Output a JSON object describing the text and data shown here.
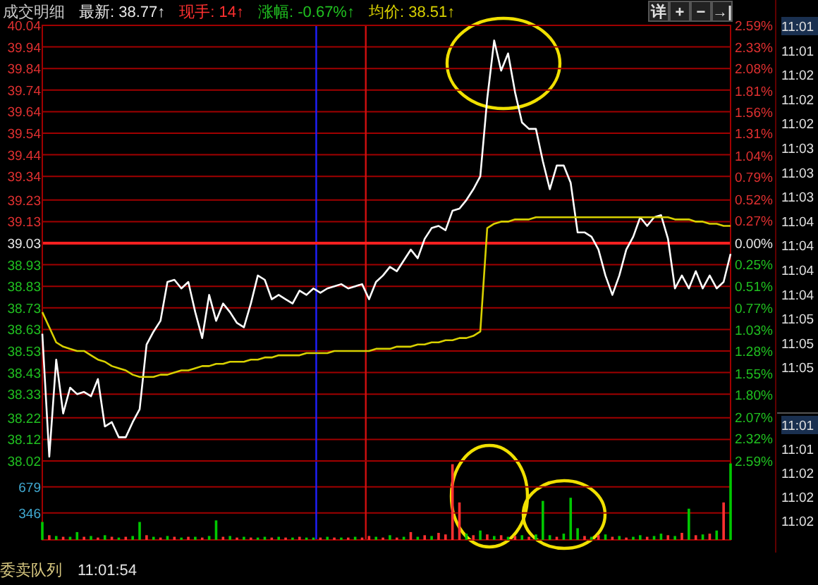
{
  "chart_data": [
    {
      "type": "line",
      "categories": [
        null,
        null,
        null,
        null,
        null,
        null,
        null,
        null,
        null,
        null,
        null,
        null,
        null,
        null,
        null,
        null,
        null,
        null,
        null,
        null,
        null,
        null,
        null,
        null,
        null,
        null,
        null,
        null,
        null,
        null,
        null,
        null,
        null,
        null,
        null,
        null,
        null,
        null,
        null,
        null,
        null,
        null,
        null,
        null,
        null,
        null,
        null,
        null,
        null,
        null,
        null,
        null,
        null,
        null,
        null,
        null,
        null,
        null,
        null,
        null,
        null,
        null,
        null,
        null,
        null,
        null,
        null,
        null,
        null,
        null,
        null,
        null,
        null,
        null,
        null,
        null,
        null,
        null,
        null,
        null,
        null,
        null,
        null,
        null,
        null,
        null,
        null,
        null,
        null,
        null,
        null,
        null,
        null,
        null,
        null,
        null,
        null,
        null,
        null,
        null
      ],
      "series": [
        {
          "color": "#ffffff",
          "values": [
            38.61,
            38.04,
            38.49,
            38.24,
            38.36,
            38.33,
            38.34,
            38.32,
            38.4,
            38.18,
            38.2,
            38.13,
            38.13,
            38.2,
            38.26,
            38.56,
            38.62,
            38.67,
            38.85,
            38.86,
            38.82,
            38.85,
            38.71,
            38.59,
            38.79,
            38.67,
            38.75,
            38.71,
            38.66,
            38.64,
            38.75,
            38.88,
            38.86,
            38.77,
            38.79,
            38.77,
            38.75,
            38.81,
            38.79,
            38.82,
            38.8,
            38.82,
            38.83,
            38.84,
            38.82,
            38.83,
            38.84,
            38.77,
            38.85,
            38.88,
            38.92,
            38.9,
            38.95,
            39.0,
            38.96,
            39.05,
            39.1,
            39.11,
            39.09,
            39.18,
            39.19,
            39.23,
            39.28,
            39.34,
            39.7,
            39.97,
            39.83,
            39.91,
            39.73,
            39.59,
            39.56,
            39.56,
            39.41,
            39.28,
            39.39,
            39.39,
            39.31,
            39.08,
            39.08,
            39.06,
            39.0,
            38.88,
            38.79,
            38.88,
            39.0,
            39.06,
            39.15,
            39.11,
            39.15,
            39.16,
            39.05,
            38.82,
            38.88,
            38.82,
            38.9,
            38.82,
            38.88,
            38.82,
            38.85,
            38.98
          ]
        },
        {
          "color": "#d8d000",
          "values": [
            38.71,
            38.64,
            38.57,
            38.55,
            38.54,
            38.53,
            38.53,
            38.51,
            38.49,
            38.48,
            38.46,
            38.45,
            38.44,
            38.42,
            38.41,
            38.41,
            38.41,
            38.42,
            38.42,
            38.43,
            38.44,
            38.44,
            38.45,
            38.46,
            38.46,
            38.47,
            38.47,
            38.48,
            38.48,
            38.48,
            38.49,
            38.49,
            38.5,
            38.5,
            38.51,
            38.51,
            38.51,
            38.51,
            38.52,
            38.52,
            38.52,
            38.52,
            38.53,
            38.53,
            38.53,
            38.53,
            38.53,
            38.53,
            38.54,
            38.54,
            38.54,
            38.55,
            38.55,
            38.55,
            38.56,
            38.56,
            38.57,
            38.57,
            38.58,
            38.58,
            38.59,
            38.59,
            38.6,
            38.62,
            39.1,
            39.12,
            39.13,
            39.13,
            39.14,
            39.14,
            39.14,
            39.15,
            39.15,
            39.15,
            39.15,
            39.15,
            39.15,
            39.15,
            39.15,
            39.15,
            39.15,
            39.15,
            39.15,
            39.15,
            39.15,
            39.15,
            39.15,
            39.15,
            39.15,
            39.15,
            39.15,
            39.14,
            39.14,
            39.14,
            39.13,
            39.13,
            39.12,
            39.12,
            39.11,
            39.11
          ]
        }
      ],
      "ylim": [
        38.02,
        40.04
      ],
      "yticks": [
        40.04,
        39.94,
        39.84,
        39.74,
        39.64,
        39.54,
        39.44,
        39.34,
        39.23,
        39.13,
        39.03,
        38.93,
        38.83,
        38.73,
        38.63,
        38.53,
        38.43,
        38.33,
        38.22,
        38.12,
        38.02
      ],
      "y2lim": [
        -2.59,
        2.59
      ],
      "y2ticks": [
        {
          "value": 2.59,
          "label": "2.59%"
        },
        {
          "value": 2.33,
          "label": "2.33%"
        },
        {
          "value": 2.08,
          "label": "2.08%"
        },
        {
          "value": 1.81,
          "label": "1.81%"
        },
        {
          "value": 1.56,
          "label": "1.56%"
        },
        {
          "value": 1.31,
          "label": "1.31%"
        },
        {
          "value": 1.04,
          "label": "1.04%"
        },
        {
          "value": 0.79,
          "label": "0.79%"
        },
        {
          "value": 0.52,
          "label": "0.52%"
        },
        {
          "value": 0.27,
          "label": "0.27%"
        },
        {
          "value": 0,
          "label": "0.00%"
        },
        {
          "value": -0.25,
          "label": "0.25%"
        },
        {
          "value": -0.51,
          "label": "0.51%"
        },
        {
          "value": -0.77,
          "label": "0.77%"
        },
        {
          "value": -1.03,
          "label": "1.03%"
        },
        {
          "value": -1.28,
          "label": "1.28%"
        },
        {
          "value": -1.55,
          "label": "1.55%"
        },
        {
          "value": -1.8,
          "label": "1.80%"
        },
        {
          "value": -2.07,
          "label": "2.07%"
        },
        {
          "value": -2.32,
          "label": "2.32%"
        },
        {
          "value": -2.59,
          "label": "2.59%"
        }
      ],
      "grid": "y",
      "ref_lines": [
        {
          "axis": "y",
          "value": 39.03,
          "color": "#ff2020"
        }
      ],
      "annotations": [
        "成交明细",
        "最新: 38.77↑",
        "现手: 14↑",
        "涨幅: -0.67%↑",
        "均价: 38.51↑",
        "详",
        "+",
        "−",
        "→|",
        "11:01",
        "11:01",
        "11:02",
        "11:02",
        "11:02",
        "11:03",
        "11:03",
        "11:03",
        "11:04",
        "11:04",
        "11:04",
        "11:04",
        "11:05",
        "11:05",
        "11:05",
        "11:01",
        "11:01",
        "11:02",
        "11:02",
        "11:02",
        "委卖队列",
        "11:01:54"
      ]
    },
    {
      "type": "bar",
      "categories": [
        null,
        null,
        null,
        null,
        null,
        null,
        null,
        null,
        null,
        null,
        null,
        null,
        null,
        null,
        null,
        null,
        null,
        null,
        null,
        null,
        null,
        null,
        null,
        null,
        null,
        null,
        null,
        null,
        null,
        null,
        null,
        null,
        null,
        null,
        null,
        null,
        null,
        null,
        null,
        null,
        null,
        null,
        null,
        null,
        null,
        null,
        null,
        null,
        null,
        null,
        null,
        null,
        null,
        null,
        null,
        null,
        null,
        null,
        null,
        null,
        null,
        null,
        null,
        null,
        null,
        null,
        null,
        null,
        null,
        null,
        null,
        null,
        null,
        null,
        null,
        null,
        null,
        null,
        null,
        null,
        null,
        null,
        null,
        null,
        null,
        null,
        null,
        null,
        null,
        null,
        null,
        null,
        null,
        null,
        null,
        null,
        null,
        null,
        null,
        null
      ],
      "values": [
        230,
        60,
        50,
        40,
        40,
        100,
        40,
        50,
        30,
        60,
        40,
        30,
        40,
        50,
        230,
        60,
        40,
        30,
        50,
        40,
        30,
        40,
        40,
        30,
        50,
        250,
        40,
        50,
        30,
        40,
        30,
        30,
        40,
        30,
        40,
        30,
        30,
        40,
        30,
        30,
        30,
        40,
        30,
        30,
        30,
        40,
        30,
        50,
        40,
        30,
        60,
        30,
        40,
        100,
        40,
        60,
        50,
        90,
        70,
        970,
        480,
        80,
        60,
        120,
        70,
        50,
        60,
        40,
        50,
        60,
        40,
        70,
        500,
        60,
        40,
        80,
        540,
        150,
        50,
        40,
        60,
        70,
        40,
        50,
        30,
        40,
        60,
        40,
        50,
        80,
        60,
        50,
        90,
        400,
        60,
        70,
        80,
        120,
        480,
        980
      ],
      "colors": [
        "#00c800",
        "#ff3030",
        "#00c800",
        "#ff3030",
        "#00c800",
        "#00c800",
        "#ff3030",
        "#00c800",
        "#ff3030",
        "#00c800",
        "#ff3030",
        "#00c800",
        "#ff3030",
        "#00c800",
        "#00c800",
        "#ff3030",
        "#00c800",
        "#ff3030",
        "#00c800",
        "#ff3030",
        "#00c800",
        "#ff3030",
        "#00c800",
        "#ff3030",
        "#00c800",
        "#00c800",
        "#ff3030",
        "#00c800",
        "#ff3030",
        "#00c800",
        "#ff3030",
        "#00c800",
        "#00c800",
        "#ff3030",
        "#00c800",
        "#ff3030",
        "#00c800",
        "#ff3030",
        "#00c800",
        "#00c800",
        "#ff3030",
        "#00c800",
        "#ff3030",
        "#00c800",
        "#ff3030",
        "#00c800",
        "#ff3030",
        "#ff3030",
        "#00c800",
        "#ff3030",
        "#00c800",
        "#ff3030",
        "#00c800",
        "#ff3030",
        "#00c800",
        "#ff3030",
        "#00c800",
        "#ff3030",
        "#ff3030",
        "#ff3030",
        "#ff3030",
        "#00c800",
        "#ff3030",
        "#00c800",
        "#ff3030",
        "#00c800",
        "#ff3030",
        "#00c800",
        "#ff3030",
        "#00c800",
        "#ff3030",
        "#00c800",
        "#00c800",
        "#00c800",
        "#ff3030",
        "#00c800",
        "#00c800",
        "#00c800",
        "#ff3030",
        "#00c800",
        "#ff3030",
        "#00c800",
        "#ff3030",
        "#00c800",
        "#ff3030",
        "#00c800",
        "#00c800",
        "#ff3030",
        "#00c800",
        "#00c800",
        "#ff3030",
        "#00c800",
        "#ff3030",
        "#00c800",
        "#ff3030",
        "#00c800",
        "#ff3030",
        "#00c800",
        "#ff3030",
        "#00c800"
      ],
      "ylim": [
        0,
        1012
      ],
      "yticks": [
        346,
        679
      ],
      "grid": "y"
    }
  ]
}
